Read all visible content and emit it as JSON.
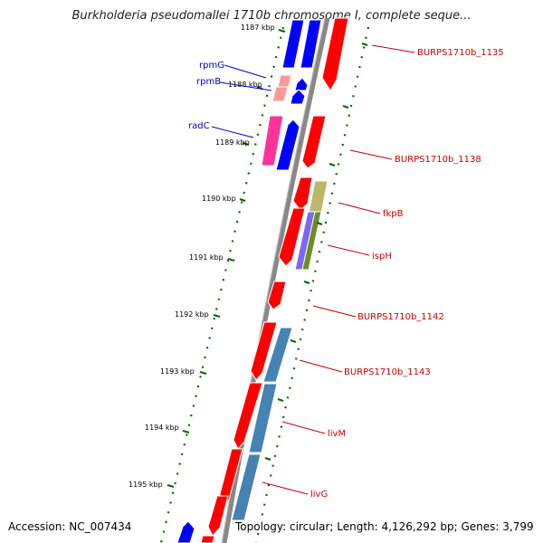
{
  "title": "Burkholderia pseudomallei 1710b chromosome I, complete seque...",
  "accession": "Accession: NC_007434",
  "topology": "Topology: circular; Length: 4,126,292 bp; Genes: 3,799",
  "kbp_labels": [
    "1187 kbp",
    "1188 kbp",
    "1189 kbp",
    "1190 kbp",
    "1191 kbp",
    "1192 kbp",
    "1193 kbp",
    "1194 kbp",
    "1195 kbp"
  ],
  "gene_labels_right": [
    "BURPS1710b_1135",
    "BURPS1710b_1138",
    "fkpB",
    "ispH",
    "BURPS1710b_1142",
    "BURPS1710b_1143",
    "livM",
    "livG"
  ],
  "gene_labels_left": [
    "rpmG",
    "rpmB",
    "radC"
  ],
  "colors": {
    "forward_gene": "#ff0000",
    "reverse_gene": "#0000ff",
    "pink_gene": "#ff3399",
    "light_red_gene": "#ff9999",
    "steel_blue_gene": "#4682b4",
    "khaki_gene": "#bdb76b",
    "purple_gene": "#7b68ee",
    "olive_gene": "#6b8e23",
    "backbone": "#888888",
    "dots": "#006600",
    "red_label": "#cc0000",
    "blue_label": "#0000cc"
  }
}
